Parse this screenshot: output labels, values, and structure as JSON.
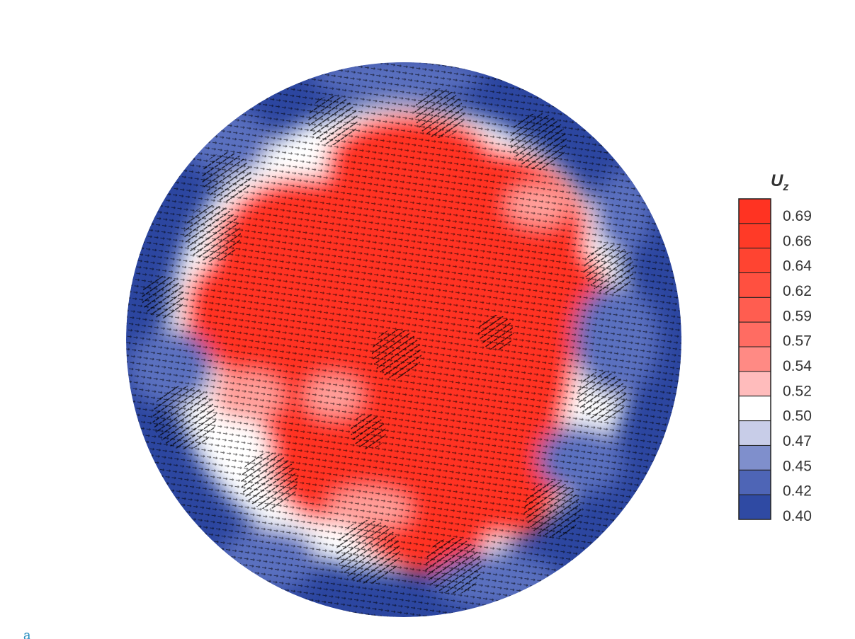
{
  "chart_data": {
    "type": "heatmap",
    "description_kind": "velocity-vector field over axial velocity contour in circular cross-section",
    "colorbar": {
      "title_main": "U",
      "title_sub": "z",
      "tick_labels": [
        "0.69",
        "0.66",
        "0.64",
        "0.62",
        "0.59",
        "0.57",
        "0.54",
        "0.52",
        "0.50",
        "0.47",
        "0.45",
        "0.42",
        "0.40"
      ],
      "range": [
        0.4,
        0.69
      ],
      "colors": [
        "#ff3322",
        "#ff3a27",
        "#ff4431",
        "#ff5040",
        "#ff5d50",
        "#ff6c62",
        "#ff8a84",
        "#ffbcbc",
        "#ffffff",
        "#c8cde8",
        "#7f8fcc",
        "#4e65b6",
        "#2f4aa3"
      ]
    },
    "colors": {
      "high": "#ff3322",
      "mid": "#ffffff",
      "low": "#2c46a0",
      "vectors": "#000000",
      "corner_mark": "#2a8fc0"
    },
    "corner_mark": "a"
  }
}
